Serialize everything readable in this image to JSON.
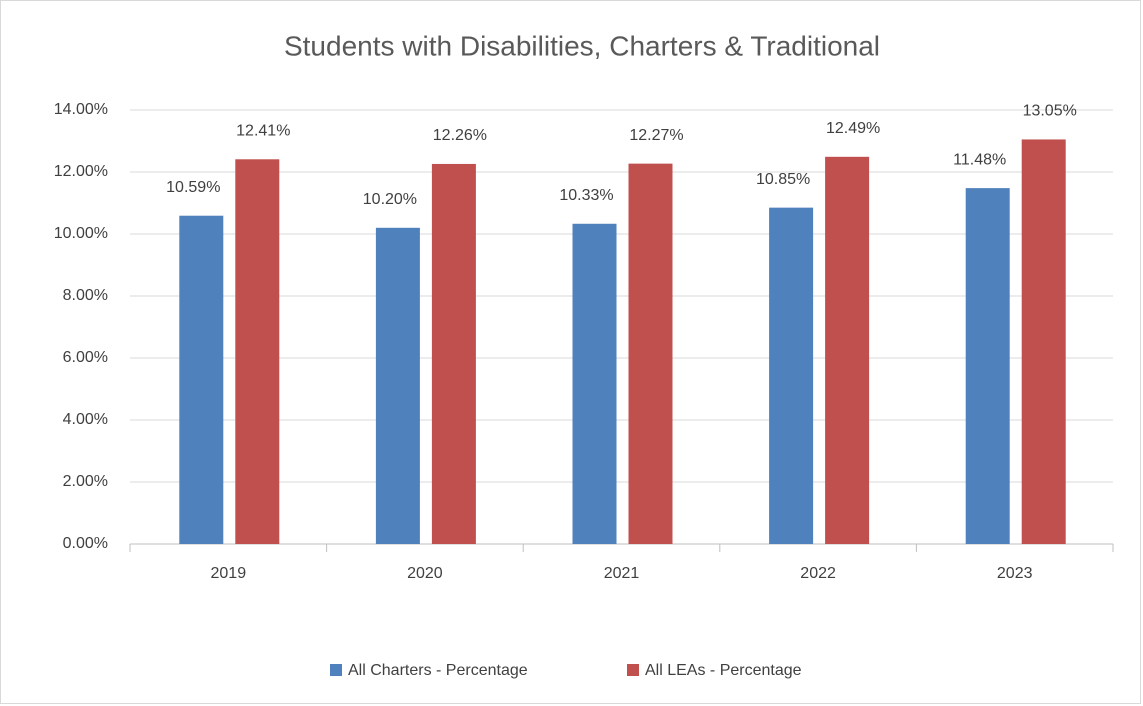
{
  "chart_data": {
    "type": "bar",
    "title": "Students with Disabilities, Charters & Traditional",
    "categories": [
      "2019",
      "2020",
      "2021",
      "2022",
      "2023"
    ],
    "series": [
      {
        "name": "All Charters - Percentage",
        "color": "#4f81bd",
        "values": [
          10.59,
          10.2,
          10.33,
          10.85,
          11.48
        ],
        "value_labels": [
          "10.59%",
          "10.20%",
          "10.33%",
          "10.85%",
          "11.48%"
        ]
      },
      {
        "name": "All LEAs - Percentage",
        "color": "#c0504d",
        "values": [
          12.41,
          12.26,
          12.27,
          12.49,
          13.05
        ],
        "value_labels": [
          "12.41%",
          "12.26%",
          "12.27%",
          "12.49%",
          "13.05%"
        ]
      }
    ],
    "ylim": [
      0,
      14
    ],
    "yticks": [
      {
        "value": 0,
        "label": "0.00%"
      },
      {
        "value": 2,
        "label": "2.00%"
      },
      {
        "value": 4,
        "label": "4.00%"
      },
      {
        "value": 6,
        "label": "6.00%"
      },
      {
        "value": 8,
        "label": "8.00%"
      },
      {
        "value": 10,
        "label": "10.00%"
      },
      {
        "value": 12,
        "label": "12.00%"
      },
      {
        "value": 14,
        "label": "14.00%"
      }
    ],
    "grid": true,
    "legend": "bottom"
  }
}
